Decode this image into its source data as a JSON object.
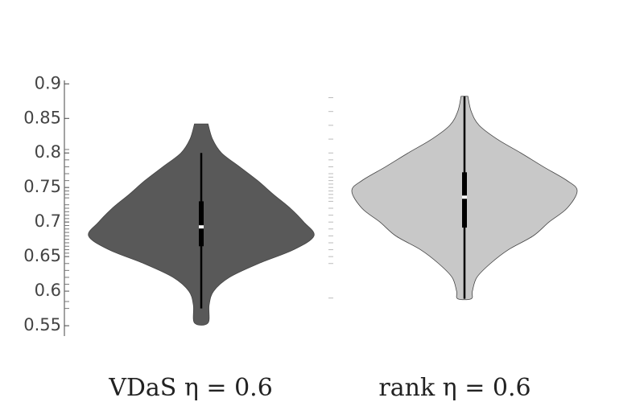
{
  "chart_data": {
    "type": "violin",
    "ylim": [
      0.535,
      0.905
    ],
    "yticks": [
      0.55,
      0.6,
      0.65,
      0.7,
      0.75,
      0.8,
      0.85,
      0.9
    ],
    "series": [
      {
        "name": "VDaS η = 0.6",
        "color": "#595959",
        "rug_color": "#777777",
        "levels": [
          0.842,
          0.82,
          0.8,
          0.78,
          0.76,
          0.74,
          0.72,
          0.7,
          0.68,
          0.66,
          0.64,
          0.62,
          0.6,
          0.58,
          0.554
        ],
        "density": [
          0.06,
          0.1,
          0.18,
          0.34,
          0.5,
          0.64,
          0.79,
          0.91,
          1,
          0.82,
          0.51,
          0.25,
          0.11,
          0.07,
          0.06
        ],
        "whisker_low": 0.575,
        "q1": 0.665,
        "median": 0.693,
        "q3": 0.73,
        "whisker_high": 0.8,
        "rug": [
          0.805,
          0.79,
          0.78,
          0.77,
          0.76,
          0.75,
          0.745,
          0.74,
          0.735,
          0.725,
          0.72,
          0.715,
          0.71,
          0.705,
          0.7,
          0.695,
          0.69,
          0.685,
          0.68,
          0.675,
          0.67,
          0.665,
          0.66,
          0.655,
          0.65,
          0.64,
          0.63,
          0.62,
          0.61,
          0.6,
          0.585,
          0.575
        ]
      },
      {
        "name": "rank η = 0.6",
        "color": "#c8c8c8",
        "rug_color": "#bbbbbb",
        "levels": [
          0.882,
          0.86,
          0.84,
          0.82,
          0.8,
          0.78,
          0.76,
          0.745,
          0.72,
          0.7,
          0.68,
          0.66,
          0.64,
          0.62,
          0.6,
          0.589
        ],
        "density": [
          0.03,
          0.06,
          0.13,
          0.29,
          0.5,
          0.7,
          0.91,
          1,
          0.91,
          0.75,
          0.61,
          0.39,
          0.23,
          0.11,
          0.07,
          0.06
        ],
        "whisker_low": 0.589,
        "q1": 0.692,
        "median": 0.736,
        "q3": 0.772,
        "whisker_high": 0.882,
        "rug": [
          0.88,
          0.86,
          0.84,
          0.82,
          0.8,
          0.79,
          0.78,
          0.77,
          0.765,
          0.76,
          0.755,
          0.75,
          0.745,
          0.74,
          0.735,
          0.73,
          0.72,
          0.71,
          0.7,
          0.69,
          0.68,
          0.67,
          0.66,
          0.65,
          0.64,
          0.59
        ]
      }
    ]
  }
}
